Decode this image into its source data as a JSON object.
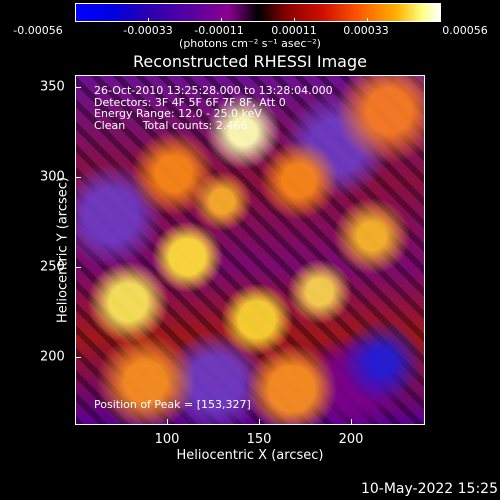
{
  "colorbar": {
    "labels": [
      "-0.00056",
      "-0.00033",
      "-0.00011",
      "0.00011",
      "0.00033",
      "0.00056"
    ],
    "units": "(photons cm⁻² s⁻¹ asec⁻²)"
  },
  "title": "Reconstructed RHESSI Image",
  "overlay": {
    "line1": "26-Oct-2010 13:25:28.000 to 13:28:04.000",
    "line2": "Detectors: 3F 4F 5F 6F 7F 8F, Att 0",
    "line3": "Energy Range: 12.0 - 25.0 keV",
    "line4": "Clean     Total counts: 2.466",
    "peak": "Position of Peak = [153,327]"
  },
  "axes": {
    "x_ticks": [
      "100",
      "150",
      "200"
    ],
    "y_ticks": [
      "350",
      "300",
      "250",
      "200"
    ],
    "xlabel": "Heliocentric X (arcsec)",
    "ylabel": "Heliocentric Y (arcsec)"
  },
  "timestamp": "10-May-2022 15:25"
}
